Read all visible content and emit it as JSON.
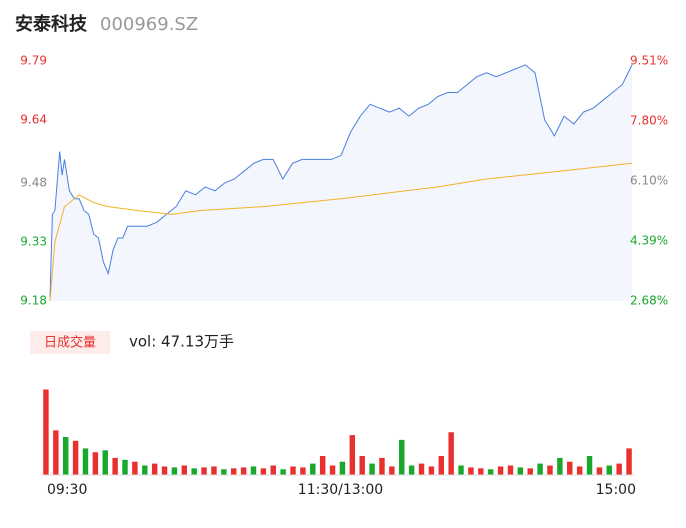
{
  "header": {
    "title": "安泰科技",
    "code": "000969.SZ"
  },
  "volume_label": "日成交量",
  "vol_text": "vol: 47.13万手",
  "chart_data": [
    {
      "type": "line",
      "xlim": [
        0,
        240
      ],
      "ylim": [
        9.18,
        9.79
      ],
      "yticks": [
        9.79,
        9.64,
        9.48,
        9.33,
        9.18
      ],
      "ytick_colors": [
        "#e8312f",
        "#e8312f",
        "#888888",
        "#1aa82c",
        "#1aa82c"
      ],
      "y2lim": [
        2.68,
        9.51
      ],
      "y2ticks": [
        {
          "value": 9.51,
          "label": "9.51%"
        },
        {
          "value": 7.8,
          "label": "7.80%"
        },
        {
          "value": 6.1,
          "label": "6.10%"
        },
        {
          "value": 4.39,
          "label": "4.39%"
        },
        {
          "value": 2.68,
          "label": "2.68%"
        }
      ],
      "y2tick_colors": [
        "#e8312f",
        "#e8312f",
        "#888888",
        "#1aa82c",
        "#1aa82c"
      ],
      "area_color": "#f3f6fd",
      "series": [
        {
          "color": "#4a7fe0",
          "x": [
            0,
            1,
            2,
            4,
            5,
            6,
            8,
            10,
            12,
            14,
            16,
            18,
            20,
            22,
            24,
            26,
            28,
            30,
            32,
            36,
            40,
            44,
            48,
            52,
            56,
            60,
            64,
            68,
            72,
            76,
            80,
            84,
            88,
            92,
            96,
            100,
            104,
            108,
            112,
            116,
            120,
            124,
            128,
            132,
            136,
            140,
            144,
            148,
            152,
            156,
            160,
            164,
            168,
            172,
            176,
            180,
            184,
            188,
            192,
            196,
            200,
            204,
            208,
            212,
            216,
            220,
            224,
            228,
            232,
            236,
            240
          ],
          "values": [
            9.19,
            9.4,
            9.41,
            9.56,
            9.5,
            9.54,
            9.46,
            9.44,
            9.44,
            9.41,
            9.4,
            9.35,
            9.34,
            9.28,
            9.25,
            9.31,
            9.34,
            9.34,
            9.37,
            9.37,
            9.37,
            9.38,
            9.4,
            9.42,
            9.46,
            9.45,
            9.47,
            9.46,
            9.48,
            9.49,
            9.51,
            9.53,
            9.54,
            9.54,
            9.49,
            9.53,
            9.54,
            9.54,
            9.54,
            9.54,
            9.55,
            9.61,
            9.65,
            9.68,
            9.67,
            9.66,
            9.67,
            9.65,
            9.67,
            9.68,
            9.7,
            9.71,
            9.71,
            9.73,
            9.75,
            9.76,
            9.75,
            9.76,
            9.77,
            9.78,
            9.76,
            9.64,
            9.6,
            9.65,
            9.63,
            9.66,
            9.67,
            9.69,
            9.71,
            9.73,
            9.78
          ]
        },
        {
          "color": "#f0b429",
          "x": [
            0,
            2,
            6,
            12,
            18,
            24,
            36,
            50,
            62,
            88,
            104,
            120,
            140,
            160,
            180,
            195,
            210,
            225,
            240
          ],
          "values": [
            9.18,
            9.33,
            9.42,
            9.45,
            9.43,
            9.42,
            9.41,
            9.4,
            9.41,
            9.42,
            9.43,
            9.44,
            9.455,
            9.47,
            9.49,
            9.5,
            9.51,
            9.52,
            9.53
          ]
        }
      ]
    },
    {
      "type": "bar",
      "xlim": [
        0,
        240
      ],
      "ylim": [
        0,
        100
      ],
      "xticks": [
        {
          "value": 0,
          "label": "09:30"
        },
        {
          "value": 120,
          "label": "11:30/13:00"
        },
        {
          "value": 240,
          "label": "15:00"
        }
      ],
      "x": [
        2,
        6,
        10,
        14,
        18,
        22,
        26,
        30,
        34,
        38,
        42,
        46,
        50,
        54,
        58,
        62,
        66,
        70,
        74,
        78,
        82,
        86,
        90,
        94,
        98,
        102,
        106,
        110,
        114,
        118,
        122,
        126,
        130,
        134,
        138,
        142,
        146,
        150,
        154,
        158,
        162,
        166,
        170,
        174,
        178,
        182,
        186,
        190,
        194,
        198,
        202,
        206,
        210,
        214,
        218,
        222,
        226,
        230,
        234,
        238
      ],
      "series": [
        {
          "color": "#e8312f",
          "values": [
            90,
            47,
            null,
            36,
            null,
            24,
            null,
            18,
            null,
            14,
            null,
            12,
            9,
            null,
            10,
            null,
            8,
            9,
            null,
            7,
            8,
            null,
            7,
            10,
            null,
            9,
            8,
            null,
            20,
            10,
            null,
            42,
            20,
            null,
            18,
            9,
            null,
            null,
            12,
            9,
            20,
            45,
            null,
            8,
            7,
            null,
            9,
            10,
            null,
            7,
            null,
            10,
            null,
            14,
            9,
            null,
            8,
            null,
            12,
            28
          ]
        },
        {
          "color": "#1aa82c",
          "values": [
            null,
            null,
            40,
            null,
            28,
            null,
            26,
            null,
            16,
            null,
            10,
            null,
            null,
            8,
            null,
            7,
            null,
            null,
            6,
            null,
            null,
            9,
            null,
            null,
            6,
            null,
            null,
            12,
            null,
            null,
            14,
            null,
            null,
            12,
            null,
            null,
            37,
            10,
            null,
            null,
            null,
            null,
            10,
            null,
            null,
            6,
            null,
            null,
            8,
            null,
            12,
            null,
            18,
            null,
            null,
            20,
            null,
            10,
            null,
            null
          ]
        }
      ]
    }
  ]
}
